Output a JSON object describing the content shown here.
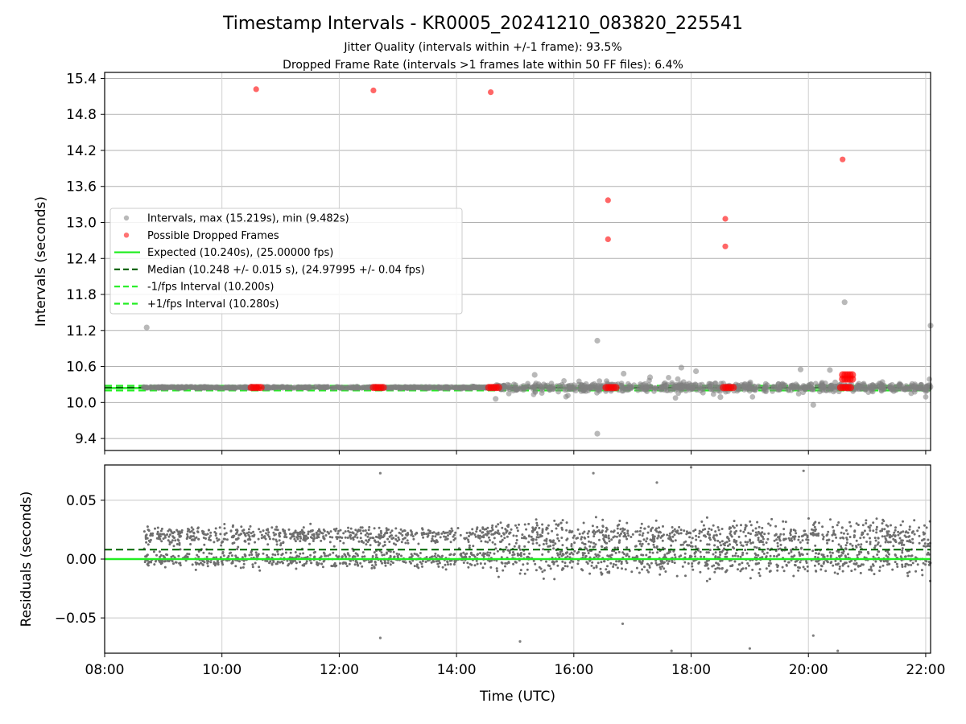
{
  "figure": {
    "title": "Timestamp Intervals - KR0005_20241210_083820_225541",
    "subtitle_1": "Jitter Quality (intervals within +/-1 frame): 93.5%",
    "subtitle_2": "Dropped Frame Rate (intervals >1 frames late within 50 FF files): 6.4%"
  },
  "chart_data": [
    {
      "type": "scatter",
      "panel": "intervals",
      "ylabel": "Intervals (seconds)",
      "xlabel": "",
      "xlim": [
        "08:00",
        "22:05"
      ],
      "ylim": [
        9.2,
        15.5
      ],
      "yticks": [
        "9.4",
        "10.0",
        "10.6",
        "11.2",
        "11.8",
        "12.4",
        "13.0",
        "13.6",
        "14.2",
        "14.8",
        "15.4"
      ],
      "xticks": [
        "08:00",
        "10:00",
        "12:00",
        "14:00",
        "16:00",
        "18:00",
        "20:00",
        "22:00"
      ],
      "grid": true,
      "legend_position": "center-left",
      "series": [
        {
          "name": "Intervals, max (15.219s), min (9.482s)",
          "color": "#808080",
          "points": [
            {
              "x": "08:43",
              "y": 11.25
            },
            {
              "x": "16:24",
              "y": 11.03
            },
            {
              "x": "16:24",
              "y": 9.48
            },
            {
              "x": "20:37",
              "y": 11.67
            },
            {
              "x": "22:05",
              "y": 11.28
            },
            {
              "x": "16:51",
              "y": 10.48
            },
            {
              "x": "17:18",
              "y": 10.42
            },
            {
              "x": "17:50",
              "y": 10.58
            },
            {
              "x": "18:05",
              "y": 10.52
            },
            {
              "x": "19:52",
              "y": 10.55
            },
            {
              "x": "20:22",
              "y": 10.54
            },
            {
              "x": "20:05",
              "y": 9.96
            },
            {
              "x": "18:30",
              "y": 10.09
            },
            {
              "x": "15:20",
              "y": 10.46
            },
            {
              "x": "14:40",
              "y": 10.06
            }
          ]
        },
        {
          "name": "Possible Dropped Frames",
          "color": "#ff0000",
          "points": [
            {
              "x": "10:35",
              "y": 15.22
            },
            {
              "x": "12:35",
              "y": 15.2
            },
            {
              "x": "14:35",
              "y": 15.17
            },
            {
              "x": "16:35",
              "y": 13.37
            },
            {
              "x": "16:35",
              "y": 12.72
            },
            {
              "x": "18:35",
              "y": 13.06
            },
            {
              "x": "18:35",
              "y": 12.6
            },
            {
              "x": "20:35",
              "y": 14.05
            },
            {
              "x": "20:40",
              "y": 10.46
            },
            {
              "x": "20:40",
              "y": 10.39
            },
            {
              "x": "10:35",
              "y": 10.25
            },
            {
              "x": "12:40",
              "y": 10.25
            },
            {
              "x": "14:38",
              "y": 10.25
            },
            {
              "x": "16:38",
              "y": 10.25
            },
            {
              "x": "18:38",
              "y": 10.25
            },
            {
              "x": "20:38",
              "y": 10.25
            }
          ]
        },
        {
          "name": "Expected (10.240s), (25.00000 fps)",
          "color": "#22ee22",
          "line": "solid",
          "y": 10.24
        },
        {
          "name": "Median (10.248 +/- 0.015 s), (24.97995 +/- 0.04 fps)",
          "color": "#006400",
          "line": "dashed",
          "y": 10.248
        },
        {
          "name": "-1/fps Interval (10.200s)",
          "color": "#22ee22",
          "line": "dashed",
          "y": 10.2
        },
        {
          "name": "+1/fps Interval (10.280s)",
          "color": "#22ee22",
          "line": "dashed",
          "y": 10.28
        }
      ]
    },
    {
      "type": "scatter",
      "panel": "residuals",
      "ylabel": "Residuals (seconds)",
      "xlabel": "Time (UTC)",
      "xlim": [
        "08:00",
        "22:05"
      ],
      "ylim": [
        -0.08,
        0.08
      ],
      "yticks": [
        "−0.05",
        "0.00",
        "0.05"
      ],
      "xticks": [
        "08:00",
        "10:00",
        "12:00",
        "14:00",
        "16:00",
        "18:00",
        "20:00",
        "22:00"
      ],
      "grid": true,
      "series": [
        {
          "name": "",
          "color": "#808080",
          "points": [
            {
              "x": "12:42",
              "y": 0.073
            },
            {
              "x": "12:42",
              "y": -0.067
            },
            {
              "x": "16:20",
              "y": 0.073
            },
            {
              "x": "18:00",
              "y": 0.078
            },
            {
              "x": "19:55",
              "y": 0.075
            },
            {
              "x": "17:40",
              "y": -0.078
            },
            {
              "x": "19:00",
              "y": -0.076
            },
            {
              "x": "20:05",
              "y": -0.065
            },
            {
              "x": "20:30",
              "y": -0.078
            },
            {
              "x": "16:50",
              "y": -0.055
            },
            {
              "x": "15:05",
              "y": -0.07
            },
            {
              "x": "17:25",
              "y": 0.065
            }
          ]
        },
        {
          "name": "median-offset",
          "color": "#006400",
          "line": "dashed",
          "y": 0.008
        },
        {
          "name": "expected-zero",
          "color": "#22ee22",
          "line": "solid",
          "y": 0.0
        }
      ]
    }
  ]
}
